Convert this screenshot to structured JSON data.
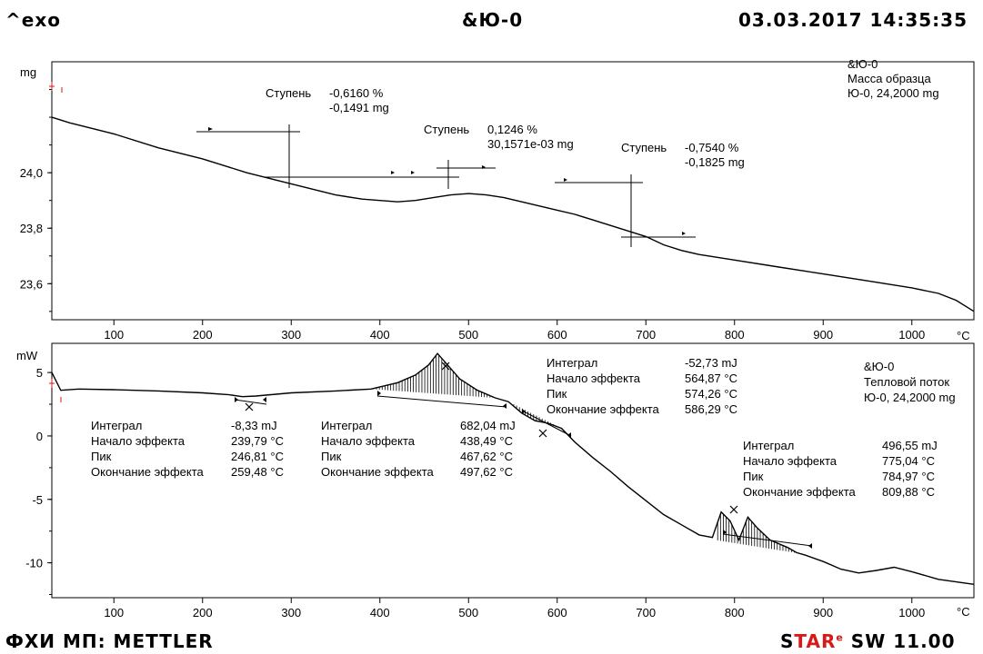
{
  "header": {
    "left": "^exo",
    "center": "&Ю-0",
    "right": "03.03.2017 14:35:35"
  },
  "footer": {
    "left": "ФХИ МП: METTLER",
    "software_a": "S",
    "software_b": "TAR",
    "software_dot": "e",
    "software_c": " SW 11.00"
  },
  "tga_panel": {
    "y_unit": "mg",
    "x_unit": "°C",
    "legend": [
      "&Ю-0",
      "Масса образца",
      "Ю-0, 24,2000 mg"
    ],
    "steps": [
      {
        "label": "Ступень",
        "percent": "-0,6160 %",
        "mass": "-0,1491 mg"
      },
      {
        "label": "Ступень",
        "percent": "0,1246 %",
        "mass": "30,1571e-03 mg"
      },
      {
        "label": "Ступень",
        "percent": "-0,7540 %",
        "mass": "-0,1825 mg"
      }
    ]
  },
  "dsc_panel": {
    "y_unit": "mW",
    "x_unit": "°C",
    "legend": [
      "&Ю-0",
      "Тепловой поток",
      "Ю-0, 24,2000 mg"
    ],
    "peaks": [
      {
        "k1": "Интеграл",
        "v1": "-8,33 mJ",
        "k2": "Начало эффекта",
        "v2": "239,79 °C",
        "k3": "Пик",
        "v3": "246,81 °C",
        "k4": "Окончание эффекта",
        "v4": "259,48 °C"
      },
      {
        "k1": "Интеграл",
        "v1": "682,04 mJ",
        "k2": "Начало эффекта",
        "v2": "438,49 °C",
        "k3": "Пик",
        "v3": "467,62 °C",
        "k4": "Окончание эффекта",
        "v4": "497,62 °C"
      },
      {
        "k1": "Интеграл",
        "v1": "-52,73 mJ",
        "k2": "Начало эффекта",
        "v2": "564,87 °C",
        "k3": "Пик",
        "v3": "574,26 °C",
        "k4": "Окончание эффекта",
        "v4": "586,29 °C"
      },
      {
        "k1": "Интеграл",
        "v1": "496,55 mJ",
        "k2": "Начало эффекта",
        "v2": "775,04 °C",
        "k3": "Пик",
        "v3": "784,97 °C",
        "k4": "Окончание эффекта",
        "v4": "809,88 °C"
      }
    ]
  },
  "chart_data": [
    {
      "type": "line",
      "x_range": [
        30,
        1070
      ],
      "ylim": [
        23.47,
        24.4
      ],
      "x_ticks": [
        100,
        200,
        300,
        400,
        500,
        600,
        700,
        800,
        900,
        1000
      ],
      "y_ticks": [
        23.6,
        23.8,
        24.0
      ],
      "y_tick_labels": [
        "23,6",
        "23,8",
        "24,0"
      ],
      "x_tick_labels": [
        "100",
        "200",
        "300",
        "400",
        "500",
        "600",
        "700",
        "800",
        "900",
        "1000"
      ],
      "series": [
        {
          "x": [
            30,
            50,
            100,
            150,
            200,
            250,
            300,
            350,
            380,
            400,
            420,
            440,
            460,
            480,
            500,
            520,
            540,
            560,
            580,
            600,
            620,
            640,
            660,
            680,
            700,
            720,
            740,
            760,
            800,
            850,
            900,
            950,
            1000,
            1030,
            1050,
            1070
          ],
          "y": [
            24.2,
            24.18,
            24.14,
            24.09,
            24.05,
            24.0,
            23.96,
            23.92,
            23.905,
            23.9,
            23.895,
            23.9,
            23.91,
            23.92,
            23.925,
            23.92,
            23.91,
            23.895,
            23.88,
            23.865,
            23.85,
            23.83,
            23.81,
            23.79,
            23.77,
            23.74,
            23.72,
            23.705,
            23.685,
            23.66,
            23.635,
            23.61,
            23.585,
            23.565,
            23.54,
            23.5
          ]
        }
      ]
    },
    {
      "type": "line",
      "x_range": [
        30,
        1070
      ],
      "ylim": [
        -12.75,
        7.3
      ],
      "x_ticks": [
        100,
        200,
        300,
        400,
        500,
        600,
        700,
        800,
        900,
        1000
      ],
      "y_ticks": [
        -10,
        -5,
        0,
        5
      ],
      "y_tick_labels": [
        "-10",
        "-5",
        "0",
        "5"
      ],
      "x_tick_labels": [
        "100",
        "200",
        "300",
        "400",
        "500",
        "600",
        "700",
        "800",
        "900",
        "1000"
      ],
      "series": [
        {
          "x": [
            30,
            40,
            60,
            100,
            150,
            200,
            230,
            245,
            260,
            300,
            350,
            390,
            420,
            440,
            455,
            465,
            475,
            490,
            510,
            530,
            545,
            560,
            575,
            590,
            605,
            620,
            640,
            660,
            680,
            700,
            720,
            740,
            760,
            775,
            785,
            795,
            805,
            815,
            825,
            840,
            860,
            870,
            880,
            900,
            920,
            940,
            960,
            980,
            1000,
            1030,
            1070
          ],
          "y": [
            5.0,
            3.6,
            3.7,
            3.65,
            3.55,
            3.4,
            3.25,
            3.1,
            3.15,
            3.4,
            3.55,
            3.7,
            4.2,
            4.8,
            5.6,
            6.5,
            5.7,
            4.5,
            3.6,
            3.0,
            2.7,
            1.8,
            1.2,
            1.0,
            0.6,
            -0.5,
            -1.7,
            -2.8,
            -4.0,
            -5.1,
            -6.2,
            -7.0,
            -7.8,
            -8.0,
            -6.0,
            -6.7,
            -8.2,
            -6.4,
            -7.2,
            -8.2,
            -8.8,
            -9.2,
            -9.4,
            -9.9,
            -10.5,
            -10.8,
            -10.6,
            -10.35,
            -10.7,
            -11.3,
            -11.7
          ]
        }
      ]
    }
  ]
}
